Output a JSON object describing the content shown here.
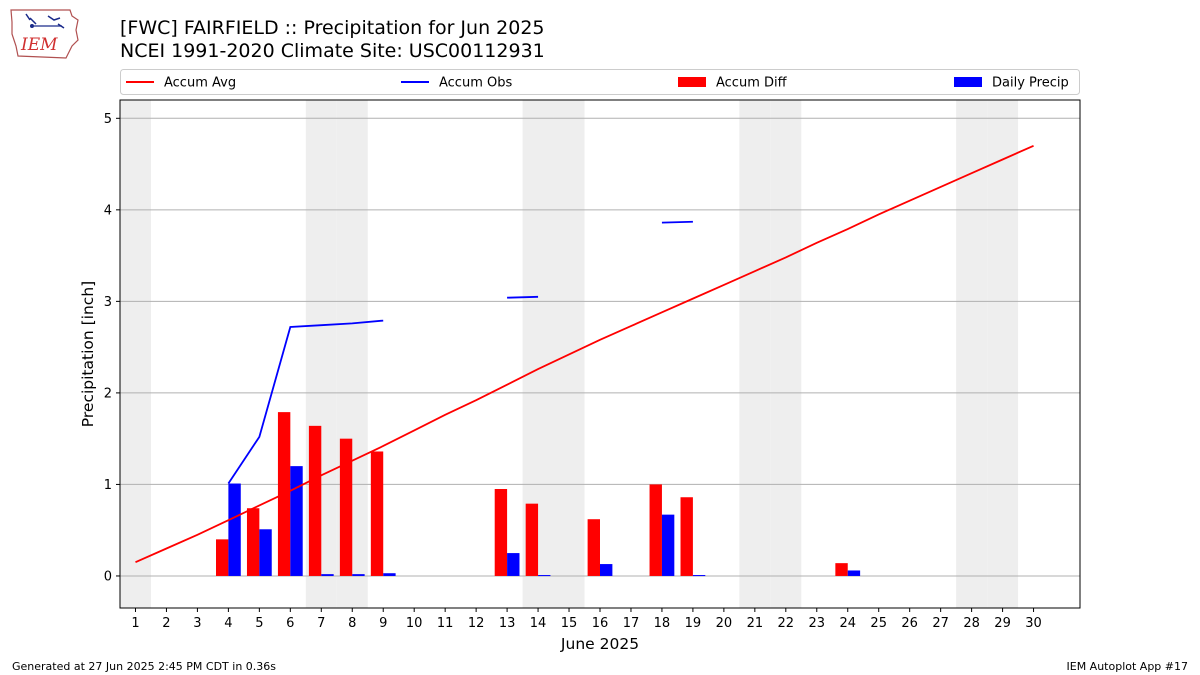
{
  "title_line1": "[FWC] FAIRFIELD :: Precipitation for Jun 2025",
  "title_line2": "NCEI 1991-2020 Climate Site: USC00112931",
  "footer_left": "Generated at 27 Jun 2025 2:45 PM CDT in 0.36s",
  "footer_right": "IEM Autoplot App #17",
  "logo_text": "IEM",
  "chart_data": {
    "type": "bar",
    "xlabel": "June 2025",
    "ylabel": "Precipitation [inch]",
    "xlim": [
      0.5,
      31.5
    ],
    "ylim": [
      -0.35,
      5.2
    ],
    "yticks": [
      0,
      1,
      2,
      3,
      4,
      5
    ],
    "categories": [
      1,
      2,
      3,
      4,
      5,
      6,
      7,
      8,
      9,
      10,
      11,
      12,
      13,
      14,
      15,
      16,
      17,
      18,
      19,
      20,
      21,
      22,
      23,
      24,
      25,
      26,
      27,
      28,
      29,
      30
    ],
    "weekend_days": [
      1,
      7,
      8,
      14,
      15,
      21,
      22,
      28,
      29
    ],
    "grid": "horizontal",
    "legend_position": "top",
    "colors": {
      "accum_avg": "#ff0000",
      "accum_obs": "#0000ff",
      "accum_diff": "#ff0000",
      "daily_precip": "#0000ff",
      "weekend_shade": "#eeeeee",
      "grid": "#b0b0b0"
    },
    "series": [
      {
        "name": "Accum Avg",
        "kind": "line",
        "values": [
          0.15,
          0.3,
          0.45,
          0.61,
          0.77,
          0.93,
          1.1,
          1.26,
          1.42,
          1.59,
          1.76,
          1.92,
          2.09,
          2.26,
          2.42,
          2.58,
          2.73,
          2.88,
          3.03,
          3.18,
          3.33,
          3.48,
          3.64,
          3.79,
          3.95,
          4.1,
          4.25,
          4.4,
          4.55,
          4.7
        ]
      },
      {
        "name": "Accum Obs",
        "kind": "line",
        "values": [
          null,
          null,
          null,
          1.01,
          1.52,
          2.72,
          2.74,
          2.76,
          2.79,
          null,
          null,
          null,
          3.04,
          3.05,
          null,
          null,
          null,
          3.86,
          3.87,
          null,
          null,
          null,
          null,
          null,
          null,
          null,
          null,
          null,
          null,
          null
        ]
      },
      {
        "name": "Accum Diff",
        "kind": "bar",
        "values": [
          0,
          0,
          0,
          0.4,
          0.74,
          1.79,
          1.64,
          1.5,
          1.36,
          0,
          0,
          0,
          0.95,
          0.79,
          0,
          0.62,
          0,
          1.0,
          0.86,
          0,
          0,
          0,
          0,
          0.14,
          0,
          0,
          0,
          0,
          0,
          0
        ]
      },
      {
        "name": "Daily Precip",
        "kind": "bar",
        "values": [
          0,
          0,
          0,
          1.01,
          0.51,
          1.2,
          0.02,
          0.02,
          0.03,
          0,
          0,
          0,
          0.25,
          0.01,
          0,
          0.13,
          0,
          0.67,
          0.01,
          0,
          0,
          0,
          0,
          0.06,
          0,
          0,
          0,
          0,
          0,
          0
        ]
      }
    ]
  }
}
